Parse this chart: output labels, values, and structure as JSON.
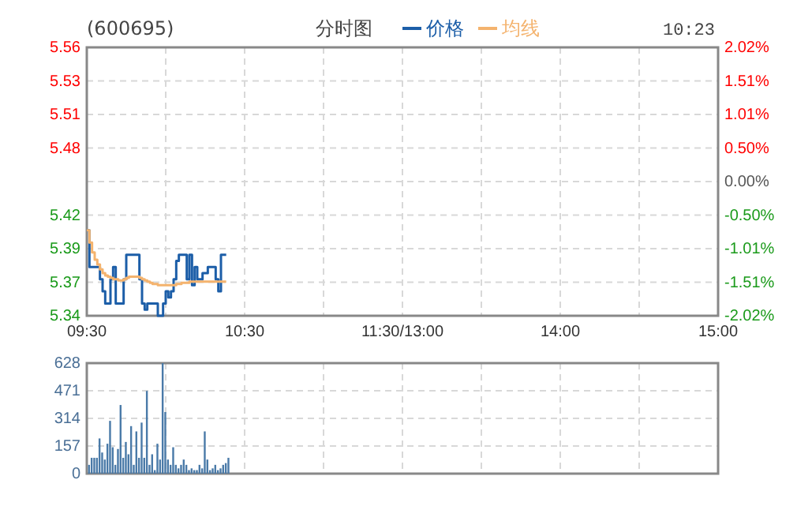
{
  "chart_data": [
    {
      "type": "line",
      "title": "(600695)",
      "subtitle": "分时图",
      "annotations": [
        "10:23"
      ],
      "legend": "top",
      "grid": true,
      "categories": [
        "09:30",
        null,
        null,
        null,
        null,
        null,
        null,
        null,
        null,
        null,
        null,
        null,
        null,
        null,
        null,
        null,
        null,
        null,
        null,
        null,
        null,
        null,
        null,
        null,
        null,
        null,
        null,
        null,
        null,
        null,
        null,
        null,
        null,
        null,
        null,
        null,
        null,
        null,
        null,
        null,
        null,
        null,
        null,
        null,
        null,
        null,
        null,
        null,
        null,
        null,
        null,
        null,
        null,
        null,
        null,
        null,
        null,
        null,
        null,
        null,
        "10:30",
        null,
        null,
        null,
        null,
        null,
        null,
        null,
        null,
        null,
        null,
        null,
        null,
        null,
        null,
        null,
        null,
        null,
        null,
        null,
        null,
        null,
        null,
        null,
        null,
        null,
        null,
        null,
        null,
        null,
        null,
        null,
        null,
        null,
        null,
        null,
        null,
        null,
        null,
        null,
        null,
        null,
        null,
        null,
        null,
        null,
        null,
        null,
        null,
        null,
        null,
        null,
        null,
        null,
        null,
        null,
        null,
        null,
        null,
        null,
        "11:30/13:00",
        null,
        null,
        null,
        null,
        null,
        null,
        null,
        null,
        null,
        null,
        null,
        null,
        null,
        null,
        null,
        null,
        null,
        null,
        null,
        null,
        null,
        null,
        null,
        null,
        null,
        null,
        null,
        null,
        null,
        null,
        null,
        null,
        null,
        null,
        null,
        null,
        null,
        null,
        null,
        null,
        null,
        null,
        null,
        null,
        null,
        null,
        null,
        null,
        null,
        null,
        null,
        null,
        null,
        null,
        null,
        null,
        null,
        null,
        null,
        "14:00",
        null,
        null,
        null,
        null,
        null,
        null,
        null,
        null,
        null,
        null,
        null,
        null,
        null,
        null,
        null,
        null,
        null,
        null,
        null,
        null,
        null,
        null,
        null,
        null,
        null,
        null,
        null,
        null,
        null,
        null,
        null,
        null,
        null,
        null,
        null,
        null,
        null,
        null,
        null,
        null,
        null,
        null,
        null,
        null,
        null,
        null,
        null,
        null,
        null,
        null,
        null,
        null,
        null,
        null,
        null,
        null,
        null,
        null,
        null,
        "15:00"
      ],
      "ylim": [
        5.34,
        5.56
      ],
      "yticks": [
        {
          "value": 5.34,
          "label": "5.34"
        },
        {
          "value": 5.3675,
          "label": "5.37"
        },
        {
          "value": 5.395,
          "label": "5.39"
        },
        {
          "value": 5.4225,
          "label": "5.42"
        },
        {
          "value": 5.45,
          "label": null
        },
        {
          "value": 5.4775,
          "label": "5.48"
        },
        {
          "value": 5.505,
          "label": "5.51"
        },
        {
          "value": 5.5325,
          "label": "5.53"
        },
        {
          "value": 5.56,
          "label": "5.56"
        }
      ],
      "y2lim": [
        -2.02,
        2.02
      ],
      "y2ticks": [
        {
          "value": -2.02,
          "label": "-2.02%"
        },
        {
          "value": -1.515,
          "label": "-1.51%"
        },
        {
          "value": -1.01,
          "label": "-1.01%"
        },
        {
          "value": -0.505,
          "label": "-0.50%"
        },
        {
          "value": 0,
          "label": "0.00%"
        },
        {
          "value": 0.505,
          "label": "0.50%"
        },
        {
          "value": 1.01,
          "label": "1.01%"
        },
        {
          "value": 1.515,
          "label": "1.51%"
        },
        {
          "value": 2.02,
          "label": "2.02%"
        }
      ],
      "series": [
        {
          "name": "价格",
          "color": "#1c5ea8",
          "values": [
            5.41,
            5.38,
            5.38,
            5.38,
            5.38,
            5.37,
            5.36,
            5.35,
            5.35,
            5.37,
            5.38,
            5.35,
            5.35,
            5.35,
            5.37,
            5.39,
            5.39,
            5.39,
            5.39,
            5.39,
            5.37,
            5.35,
            5.345,
            5.35,
            5.35,
            5.35,
            5.35,
            5.34,
            5.34,
            5.35,
            5.36,
            5.355,
            5.36,
            5.37,
            5.385,
            5.39,
            5.39,
            5.39,
            5.37,
            5.39,
            5.365,
            5.38,
            5.37,
            5.37,
            5.375,
            5.375,
            5.38,
            5.38,
            5.38,
            5.37,
            5.36,
            5.39,
            5.39,
            5.39,
            null,
            null,
            null,
            null,
            null,
            null,
            null,
            null,
            null,
            null,
            null,
            null,
            null,
            null,
            null,
            null,
            null,
            null,
            null,
            null,
            null,
            null,
            null,
            null,
            null,
            null,
            null,
            null,
            null,
            null,
            null,
            null,
            null,
            null,
            null,
            null,
            null,
            null,
            null,
            null,
            null,
            null,
            null,
            null,
            null,
            null,
            null,
            null,
            null,
            null,
            null,
            null,
            null,
            null,
            null,
            null,
            null,
            null,
            null,
            null,
            null,
            null,
            null,
            null,
            null,
            null,
            null,
            null,
            null,
            null,
            null,
            null,
            null,
            null,
            null,
            null,
            null,
            null,
            null,
            null,
            null,
            null,
            null,
            null,
            null,
            null,
            null,
            null,
            null,
            null,
            null,
            null,
            null,
            null,
            null,
            null,
            null,
            null,
            null,
            null,
            null,
            null,
            null,
            null,
            null,
            null,
            null,
            null,
            null,
            null,
            null,
            null,
            null,
            null,
            null,
            null,
            null,
            null,
            null,
            null,
            null,
            null,
            null,
            null,
            null,
            null,
            null,
            null,
            null,
            null,
            null,
            null,
            null,
            null,
            null,
            null,
            null,
            null,
            null,
            null,
            null,
            null,
            null,
            null,
            null,
            null,
            null,
            null,
            null,
            null,
            null,
            null,
            null,
            null,
            null,
            null,
            null,
            null,
            null,
            null,
            null,
            null,
            null,
            null,
            null,
            null,
            null,
            null,
            null,
            null,
            null,
            null,
            null,
            null,
            null,
            null,
            null,
            null,
            null,
            null,
            null,
            null,
            null,
            null,
            null,
            null,
            null
          ]
        },
        {
          "name": "均线",
          "color": "#f4b36e",
          "values": [
            5.41,
            5.4,
            5.392,
            5.386,
            5.382,
            5.378,
            5.375,
            5.373,
            5.372,
            5.371,
            5.37,
            5.37,
            5.369,
            5.369,
            5.37,
            5.371,
            5.372,
            5.372,
            5.372,
            5.372,
            5.371,
            5.37,
            5.369,
            5.368,
            5.367,
            5.366,
            5.366,
            5.365,
            5.365,
            5.365,
            5.365,
            5.365,
            5.365,
            5.365,
            5.366,
            5.366,
            5.367,
            5.367,
            5.367,
            5.368,
            5.368,
            5.368,
            5.368,
            5.368,
            5.368,
            5.368,
            5.368,
            5.368,
            5.368,
            5.368,
            5.368,
            5.368,
            5.368,
            5.368,
            null,
            null,
            null,
            null,
            null,
            null,
            null,
            null,
            null,
            null,
            null,
            null,
            null,
            null,
            null,
            null,
            null,
            null,
            null,
            null,
            null,
            null,
            null,
            null,
            null,
            null,
            null,
            null,
            null,
            null,
            null,
            null,
            null,
            null,
            null,
            null,
            null,
            null,
            null,
            null,
            null,
            null,
            null,
            null,
            null,
            null,
            null,
            null,
            null,
            null,
            null,
            null,
            null,
            null,
            null,
            null,
            null,
            null,
            null,
            null,
            null,
            null,
            null,
            null,
            null,
            null,
            null,
            null,
            null,
            null,
            null,
            null,
            null,
            null,
            null,
            null,
            null,
            null,
            null,
            null,
            null,
            null,
            null,
            null,
            null,
            null,
            null,
            null,
            null,
            null,
            null,
            null,
            null,
            null,
            null,
            null,
            null,
            null,
            null,
            null,
            null,
            null,
            null,
            null,
            null,
            null,
            null,
            null,
            null,
            null,
            null,
            null,
            null,
            null,
            null,
            null,
            null,
            null,
            null,
            null,
            null,
            null,
            null,
            null,
            null,
            null,
            null,
            null,
            null,
            null,
            null,
            null,
            null,
            null,
            null,
            null,
            null,
            null,
            null,
            null,
            null,
            null,
            null,
            null,
            null,
            null,
            null,
            null,
            null,
            null,
            null,
            null,
            null,
            null,
            null,
            null,
            null,
            null,
            null,
            null,
            null,
            null,
            null,
            null,
            null,
            null,
            null,
            null,
            null,
            null,
            null,
            null,
            null,
            null,
            null,
            null,
            null,
            null,
            null,
            null,
            null,
            null,
            null,
            null,
            null,
            null,
            null
          ]
        }
      ]
    },
    {
      "type": "bar",
      "grid": true,
      "tick_labels": "y",
      "color": "#4a7aa8",
      "categories": [
        null,
        null,
        null,
        null,
        null,
        null,
        null,
        null,
        null,
        null,
        null,
        null,
        null,
        null,
        null,
        null,
        null,
        null,
        null,
        null,
        null,
        null,
        null,
        null,
        null,
        null,
        null,
        null,
        null,
        null,
        null,
        null,
        null,
        null,
        null,
        null,
        null,
        null,
        null,
        null,
        null,
        null,
        null,
        null,
        null,
        null,
        null,
        null,
        null,
        null,
        null,
        null,
        null,
        null,
        null,
        null,
        null,
        null,
        null,
        null,
        null,
        null,
        null,
        null,
        null,
        null,
        null,
        null,
        null,
        null,
        null,
        null,
        null,
        null,
        null,
        null,
        null,
        null,
        null,
        null,
        null,
        null,
        null,
        null,
        null,
        null,
        null,
        null,
        null,
        null,
        null,
        null,
        null,
        null,
        null,
        null,
        null,
        null,
        null,
        null,
        null,
        null,
        null,
        null,
        null,
        null,
        null,
        null,
        null,
        null,
        null,
        null,
        null,
        null,
        null,
        null,
        null,
        null,
        null,
        null,
        null,
        null,
        null,
        null,
        null,
        null,
        null,
        null,
        null,
        null,
        null,
        null,
        null,
        null,
        null,
        null,
        null,
        null,
        null,
        null,
        null,
        null,
        null,
        null,
        null,
        null,
        null,
        null,
        null,
        null,
        null,
        null,
        null,
        null,
        null,
        null,
        null,
        null,
        null,
        null,
        null,
        null,
        null,
        null,
        null,
        null,
        null,
        null,
        null,
        null,
        null,
        null,
        null,
        null,
        null,
        null,
        null,
        null,
        null,
        null,
        null,
        null,
        null,
        null,
        null,
        null,
        null,
        null,
        null,
        null,
        null,
        null,
        null,
        null,
        null,
        null,
        null,
        null,
        null,
        null,
        null,
        null,
        null,
        null,
        null,
        null,
        null,
        null,
        null,
        null,
        null,
        null,
        null,
        null,
        null,
        null,
        null,
        null,
        null,
        null,
        null,
        null,
        null,
        null,
        null,
        null,
        null,
        null,
        null,
        null,
        null,
        null,
        null,
        null,
        null,
        null,
        null,
        null,
        null,
        null,
        null
      ],
      "ylim": [
        0,
        628
      ],
      "yticks": [
        0,
        157,
        314,
        471,
        628
      ],
      "values": [
        50,
        90,
        90,
        90,
        200,
        120,
        80,
        170,
        300,
        150,
        50,
        140,
        390,
        90,
        180,
        110,
        270,
        50,
        240,
        90,
        290,
        90,
        470,
        50,
        110,
        20,
        170,
        80,
        628,
        350,
        80,
        50,
        150,
        50,
        30,
        50,
        80,
        50,
        20,
        30,
        20,
        20,
        50,
        30,
        240,
        80,
        20,
        30,
        50,
        20,
        30,
        50,
        60,
        90,
        null,
        null,
        null,
        null,
        null,
        null,
        null,
        null,
        null,
        null,
        null,
        null,
        null,
        null,
        null,
        null,
        null,
        null,
        null,
        null,
        null,
        null,
        null,
        null,
        null,
        null,
        null,
        null,
        null,
        null,
        null,
        null,
        null,
        null,
        null,
        null,
        null,
        null,
        null,
        null,
        null,
        null,
        null,
        null,
        null,
        null,
        null,
        null,
        null,
        null,
        null,
        null,
        null,
        null,
        null,
        null,
        null,
        null,
        null,
        null,
        null,
        null,
        null,
        null,
        null,
        null,
        null,
        null,
        null,
        null,
        null,
        null,
        null,
        null,
        null,
        null,
        null,
        null,
        null,
        null,
        null,
        null,
        null,
        null,
        null,
        null,
        null,
        null,
        null,
        null,
        null,
        null,
        null,
        null,
        null,
        null,
        null,
        null,
        null,
        null,
        null,
        null,
        null,
        null,
        null,
        null,
        null,
        null,
        null,
        null,
        null,
        null,
        null,
        null,
        null,
        null,
        null,
        null,
        null,
        null,
        null,
        null,
        null,
        null,
        null,
        null,
        null,
        null,
        null,
        null,
        null,
        null,
        null,
        null,
        null,
        null,
        null,
        null,
        null,
        null,
        null,
        null,
        null,
        null,
        null,
        null,
        null,
        null,
        null,
        null,
        null,
        null,
        null,
        null,
        null,
        null,
        null,
        null,
        null,
        null,
        null,
        null,
        null,
        null,
        null,
        null,
        null,
        null,
        null,
        null,
        null,
        null,
        null,
        null,
        null,
        null,
        null,
        null,
        null,
        null,
        null,
        null,
        null,
        null,
        null,
        null,
        null
      ]
    }
  ]
}
